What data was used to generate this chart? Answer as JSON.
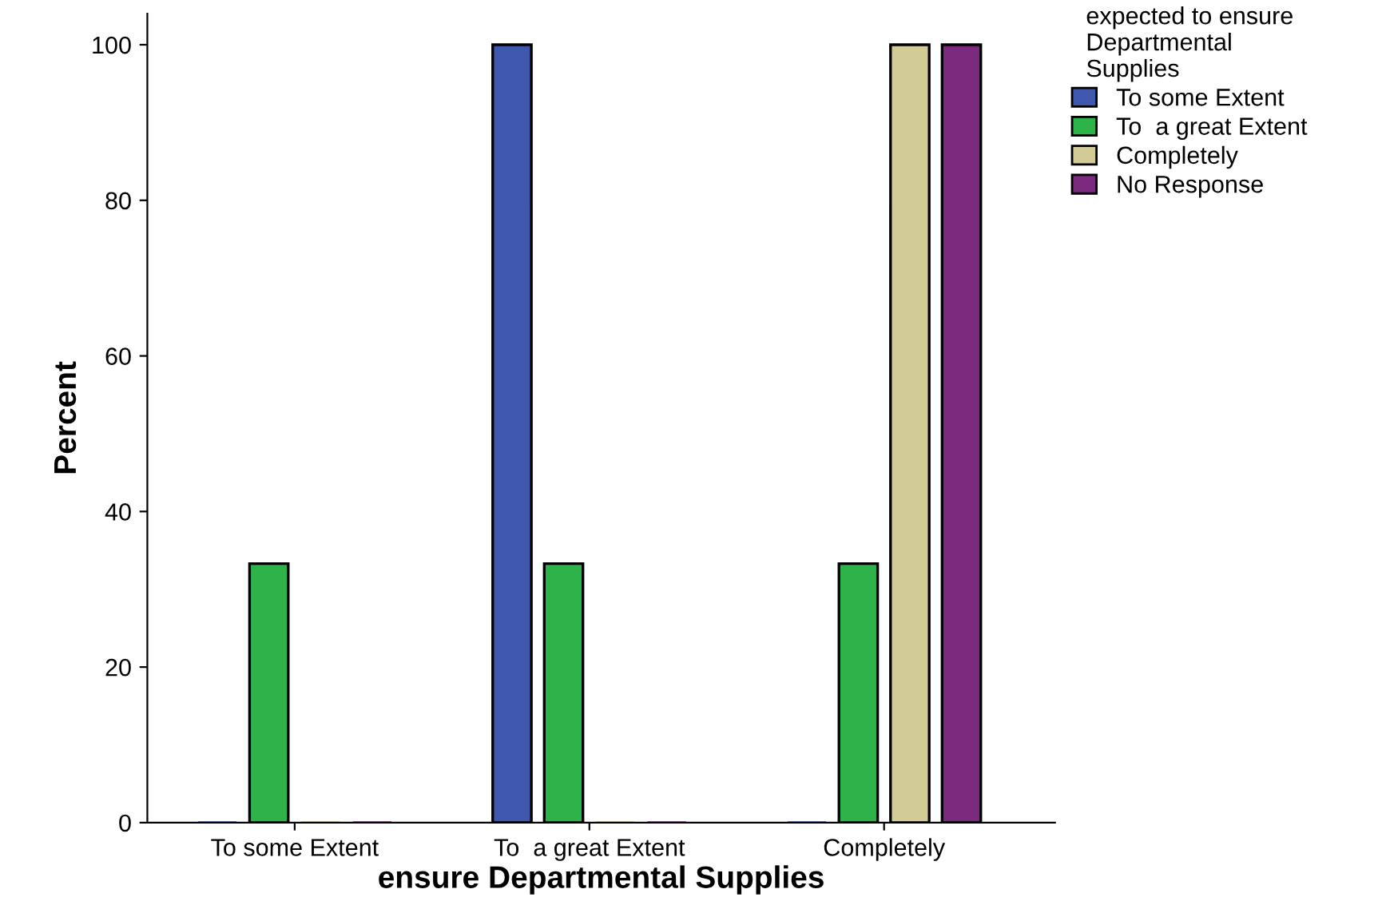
{
  "chart_data": {
    "type": "bar",
    "xlabel": "ensure Departmental Supplies",
    "ylabel": "Percent",
    "legend_title": "expected to ensure\nDepartmental\nSupplies",
    "categories": [
      "To some Extent",
      "To  a great Extent",
      "Completely"
    ],
    "series": [
      {
        "name": "To some Extent",
        "color": "#3f58ad",
        "values": [
          0,
          100,
          0
        ]
      },
      {
        "name": "To  a great Extent",
        "color": "#2db34a",
        "values": [
          33.3,
          33.3,
          33.3
        ]
      },
      {
        "name": "Completely",
        "color": "#d3cb95",
        "values": [
          0,
          0,
          100
        ]
      },
      {
        "name": "No Response",
        "color": "#7b2a7e",
        "values": [
          0,
          0,
          100
        ]
      }
    ],
    "ylim": [
      0,
      104
    ],
    "yticks": [
      0,
      20,
      40,
      60,
      80,
      100
    ],
    "grid": false,
    "legend": "top right"
  }
}
